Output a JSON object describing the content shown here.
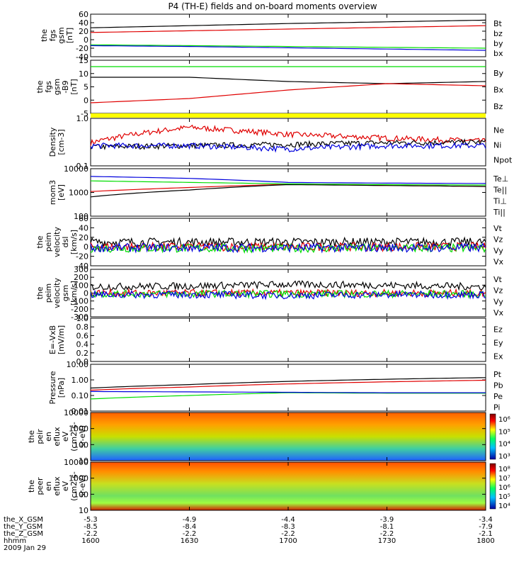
{
  "title": "P4 (TH-E) fields and on-board moments overview",
  "date_label": "2009 Jan 29",
  "colors": {
    "black": "#000000",
    "red": "#e00000",
    "green": "#00dd00",
    "blue": "#0000dd",
    "yellow": "#ffff00"
  },
  "chart_data": [
    {
      "type": "line",
      "ylabel": [
        "the",
        "fgs",
        "gsm",
        "[nT]"
      ],
      "yticks": [
        "60",
        "40",
        "20",
        "0",
        "-20",
        "-40"
      ],
      "yrange": [
        -40,
        60
      ],
      "series": [
        {
          "name": "Bt",
          "color": "black",
          "values": [
            28,
            33,
            38,
            42,
            46
          ]
        },
        {
          "name": "bz",
          "color": "red",
          "values": [
            17,
            21,
            25,
            29,
            33
          ]
        },
        {
          "name": "by",
          "color": "green",
          "values": [
            -12,
            -14,
            -16,
            -18,
            -20
          ]
        },
        {
          "name": "bx",
          "color": "blue",
          "values": [
            -14,
            -16,
            -19,
            -22,
            -25
          ]
        }
      ]
    },
    {
      "type": "line",
      "ylabel": [
        "the",
        "fgs",
        "gsm",
        "-B9",
        "[nT]"
      ],
      "yticks": [
        "15",
        "10",
        "5",
        "0",
        "-5"
      ],
      "yrange": [
        -8,
        17
      ],
      "series": [
        {
          "name": "By",
          "color": "green",
          "values": [
            14,
            14,
            14,
            14,
            14
          ]
        },
        {
          "name": "Bx",
          "color": "black",
          "values": [
            9,
            9,
            7,
            6,
            7
          ]
        },
        {
          "name": "Bz",
          "color": "red",
          "values": [
            -3,
            -1,
            3,
            6,
            5
          ]
        }
      ]
    },
    {
      "type": "line",
      "ylabel": [
        "Density",
        "[cm-3]"
      ],
      "yticks": [
        "1.0",
        "0.1"
      ],
      "scale": "log",
      "yrange": [
        0.1,
        1.3
      ],
      "series": [
        {
          "name": "Ne",
          "color": "red",
          "values": [
            0.35,
            0.8,
            0.55,
            0.45,
            0.38
          ]
        },
        {
          "name": "Ni",
          "color": "black",
          "values": [
            0.28,
            0.3,
            0.32,
            0.35,
            0.36
          ]
        },
        {
          "name": "Npot",
          "color": "blue",
          "values": [
            0.3,
            0.3,
            0.25,
            0.3,
            0.3
          ]
        }
      ]
    },
    {
      "type": "line",
      "ylabel": [
        "mom3",
        "[eV]"
      ],
      "yticks": [
        "10000",
        "1000",
        "100"
      ],
      "scale": "log",
      "yrange": [
        100,
        12000
      ],
      "series": [
        {
          "name": "Te⊥",
          "color": "red",
          "values": [
            1200,
            1800,
            2500,
            2200,
            2000
          ]
        },
        {
          "name": "Te||",
          "color": "black",
          "values": [
            700,
            1400,
            2400,
            2200,
            2000
          ]
        },
        {
          "name": "Ti⊥",
          "color": "blue",
          "values": [
            5500,
            4500,
            3000,
            2800,
            2700
          ]
        },
        {
          "name": "Ti||",
          "color": "green",
          "values": [
            3500,
            3000,
            2600,
            2400,
            2300
          ]
        }
      ]
    },
    {
      "type": "line",
      "ylabel": [
        "the",
        "peim",
        "velocity",
        "dsl",
        "[km/s]"
      ],
      "yticks": [
        "60",
        "40",
        "20",
        "0",
        "-20",
        "-40"
      ],
      "yrange": [
        -40,
        60
      ],
      "series": [
        {
          "name": "Vt",
          "color": "black",
          "values": [
            10,
            10,
            10,
            10,
            10
          ]
        },
        {
          "name": "Vz",
          "color": "red",
          "values": [
            0,
            0,
            0,
            0,
            0
          ]
        },
        {
          "name": "Vy",
          "color": "green",
          "values": [
            -3,
            -3,
            -3,
            -3,
            -3
          ]
        },
        {
          "name": "Vx",
          "color": "blue",
          "values": [
            -2,
            -2,
            -2,
            -2,
            -2
          ]
        }
      ]
    },
    {
      "type": "line",
      "ylabel": [
        "the",
        "peim",
        "velocity",
        "gsm",
        "[km/s]"
      ],
      "yticks": [
        "300",
        "200",
        "100",
        "0",
        "-100",
        "-200",
        "-300"
      ],
      "yrange": [
        -300,
        300
      ],
      "series": [
        {
          "name": "Vt",
          "color": "black",
          "values": [
            80,
            90,
            110,
            100,
            80
          ]
        },
        {
          "name": "Vz",
          "color": "red",
          "values": [
            0,
            0,
            0,
            0,
            0
          ]
        },
        {
          "name": "Vy",
          "color": "green",
          "values": [
            -10,
            -10,
            -10,
            -10,
            -10
          ]
        },
        {
          "name": "Vx",
          "color": "blue",
          "values": [
            -20,
            -20,
            -30,
            -20,
            -20
          ]
        }
      ]
    },
    {
      "type": "line",
      "ylabel": [
        "E=-VxB",
        "[mV/m]"
      ],
      "yticks": [
        "1.0",
        "0.8",
        "0.6",
        "0.4",
        "0.2",
        "0.0"
      ],
      "yrange": [
        0,
        1
      ],
      "series": [
        {
          "name": "Ez",
          "color": "red",
          "values": []
        },
        {
          "name": "Ey",
          "color": "green",
          "values": []
        },
        {
          "name": "Ex",
          "color": "blue",
          "values": []
        }
      ]
    },
    {
      "type": "line",
      "ylabel": [
        "Pressure",
        "[nPa]"
      ],
      "yticks": [
        "10.00",
        "1.00",
        "0.10",
        "0.01"
      ],
      "scale": "log",
      "yrange": [
        0.01,
        10
      ],
      "series": [
        {
          "name": "Pt",
          "color": "black",
          "values": [
            0.3,
            0.5,
            0.8,
            1.1,
            1.4
          ]
        },
        {
          "name": "Pb",
          "color": "red",
          "values": [
            0.22,
            0.35,
            0.55,
            0.75,
            0.95
          ]
        },
        {
          "name": "Pe",
          "color": "green",
          "values": [
            0.06,
            0.1,
            0.15,
            0.14,
            0.14
          ]
        },
        {
          "name": "Pi",
          "color": "blue",
          "values": [
            0.18,
            0.17,
            0.16,
            0.15,
            0.15
          ]
        }
      ]
    },
    {
      "type": "heatmap",
      "ylabel": [
        "the",
        "peir",
        "en",
        "eflux",
        "eV",
        "(cm2-s-",
        "sr-eV)"
      ],
      "yticks": [
        "10000",
        "1000",
        "100",
        "10"
      ],
      "scale": "log",
      "colorbar_ticks": [
        "10⁶",
        "10⁵",
        "10⁴",
        "10³"
      ]
    },
    {
      "type": "heatmap",
      "ylabel": [
        "the",
        "peer",
        "en",
        "eflux",
        "eV",
        "(cm2-s-",
        "sr-eV)"
      ],
      "yticks": [
        "10000",
        "1000",
        "100",
        "10"
      ],
      "scale": "log",
      "colorbar_ticks": [
        "10⁸",
        "10⁷",
        "10⁶",
        "10⁵",
        "10⁴"
      ]
    }
  ],
  "x_axis": {
    "row_labels": [
      "the_X_GSM",
      "the_Y_GSM",
      "the_Z_GSM",
      "hhmm"
    ],
    "columns": [
      [
        "-5.3",
        "-8.5",
        "-2.2",
        "1600"
      ],
      [
        "-4.9",
        "-8.4",
        "-2.2",
        "1630"
      ],
      [
        "-4.4",
        "-8.3",
        "-2.2",
        "1700"
      ],
      [
        "-3.9",
        "-8.1",
        "-2.2",
        "1730"
      ],
      [
        "-3.4",
        "-7.9",
        "-2.1",
        "1800"
      ]
    ]
  }
}
